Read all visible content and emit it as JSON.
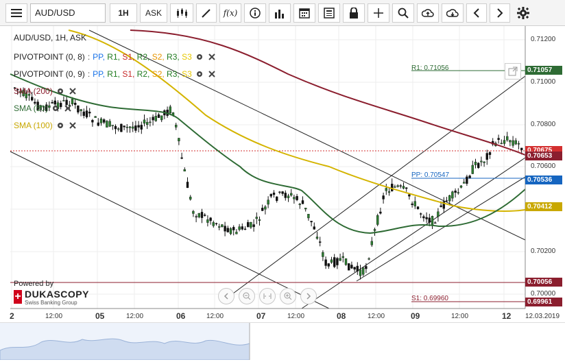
{
  "toolbar": {
    "instrument": "AUD/USD",
    "period": "1H",
    "side": "ASK",
    "icons": [
      "menu-icon",
      "candlestick-icon",
      "draw-line-icon",
      "function-icon",
      "info-icon",
      "volume-bars-icon",
      "calendar-icon",
      "news-icon",
      "lock-icon",
      "crosshair-icon",
      "zoom-icon",
      "upload-icon",
      "download-icon",
      "prev-icon",
      "next-icon",
      "settings-icon"
    ],
    "function_label": "f(x)"
  },
  "chart": {
    "title": "AUD/USD, 1H, ASK",
    "indicators": [
      {
        "name": "PIVOTPOINT (0, 8)",
        "sep": ":",
        "items": [
          {
            "label": "PP",
            "color": "#1a73e8"
          },
          {
            "label": "R1",
            "color": "#1f7a1f"
          },
          {
            "label": "S1",
            "color": "#c62828"
          },
          {
            "label": "R2",
            "color": "#1f7a1f"
          },
          {
            "label": "S2",
            "color": "#e69500"
          },
          {
            "label": "R3",
            "color": "#1f7a1f"
          },
          {
            "label": "S3",
            "color": "#e6c700"
          }
        ]
      },
      {
        "name": "PIVOTPOINT (0, 9)",
        "sep": ":",
        "items": [
          {
            "label": "PP",
            "color": "#1a73e8"
          },
          {
            "label": "R1",
            "color": "#1f7a1f"
          },
          {
            "label": "S1",
            "color": "#c62828"
          },
          {
            "label": "R2",
            "color": "#1f7a1f"
          },
          {
            "label": "S2",
            "color": "#e69500"
          },
          {
            "label": "R3",
            "color": "#1f7a1f"
          },
          {
            "label": "S3",
            "color": "#e6c700"
          }
        ]
      },
      {
        "name": "SMA (200)",
        "color": "#8b1e2e"
      },
      {
        "name": "SMA (50)",
        "color": "#2e6b34"
      },
      {
        "name": "SMA (100)",
        "color": "#d4b400"
      }
    ],
    "price_axis": [
      "0.71200",
      "0.71000",
      "0.70800",
      "0.70600",
      "0.70400",
      "0.70200",
      "0.70000"
    ],
    "price_tags": [
      {
        "value": "0.71057",
        "color": "#2e6b34"
      },
      {
        "value": "0.70675",
        "color": "#d32f2f"
      },
      {
        "value": "0.70653",
        "color": "#8b1e2e"
      },
      {
        "value": "0.70536",
        "color": "#1565c0"
      },
      {
        "value": "0.70412",
        "color": "#c9a800"
      },
      {
        "value": "0.70056",
        "color": "#8b1e2e"
      },
      {
        "value": "0.69961",
        "color": "#8b1e2e"
      }
    ],
    "level_labels": {
      "r1": "R1: 0.71056",
      "pp": "PP: 0.70547",
      "s1": "S1: 0.69960"
    },
    "time_axis": [
      "2",
      "12:00",
      "05",
      "12:00",
      "06",
      "12:00",
      "07",
      "12:00",
      "08",
      "12:00",
      "09",
      "12:00",
      "12",
      "12.03.2019"
    ],
    "powered_by": "Powered by",
    "brand": "DUKASCOPY",
    "brand_sub": "Swiss Banking Group"
  }
}
